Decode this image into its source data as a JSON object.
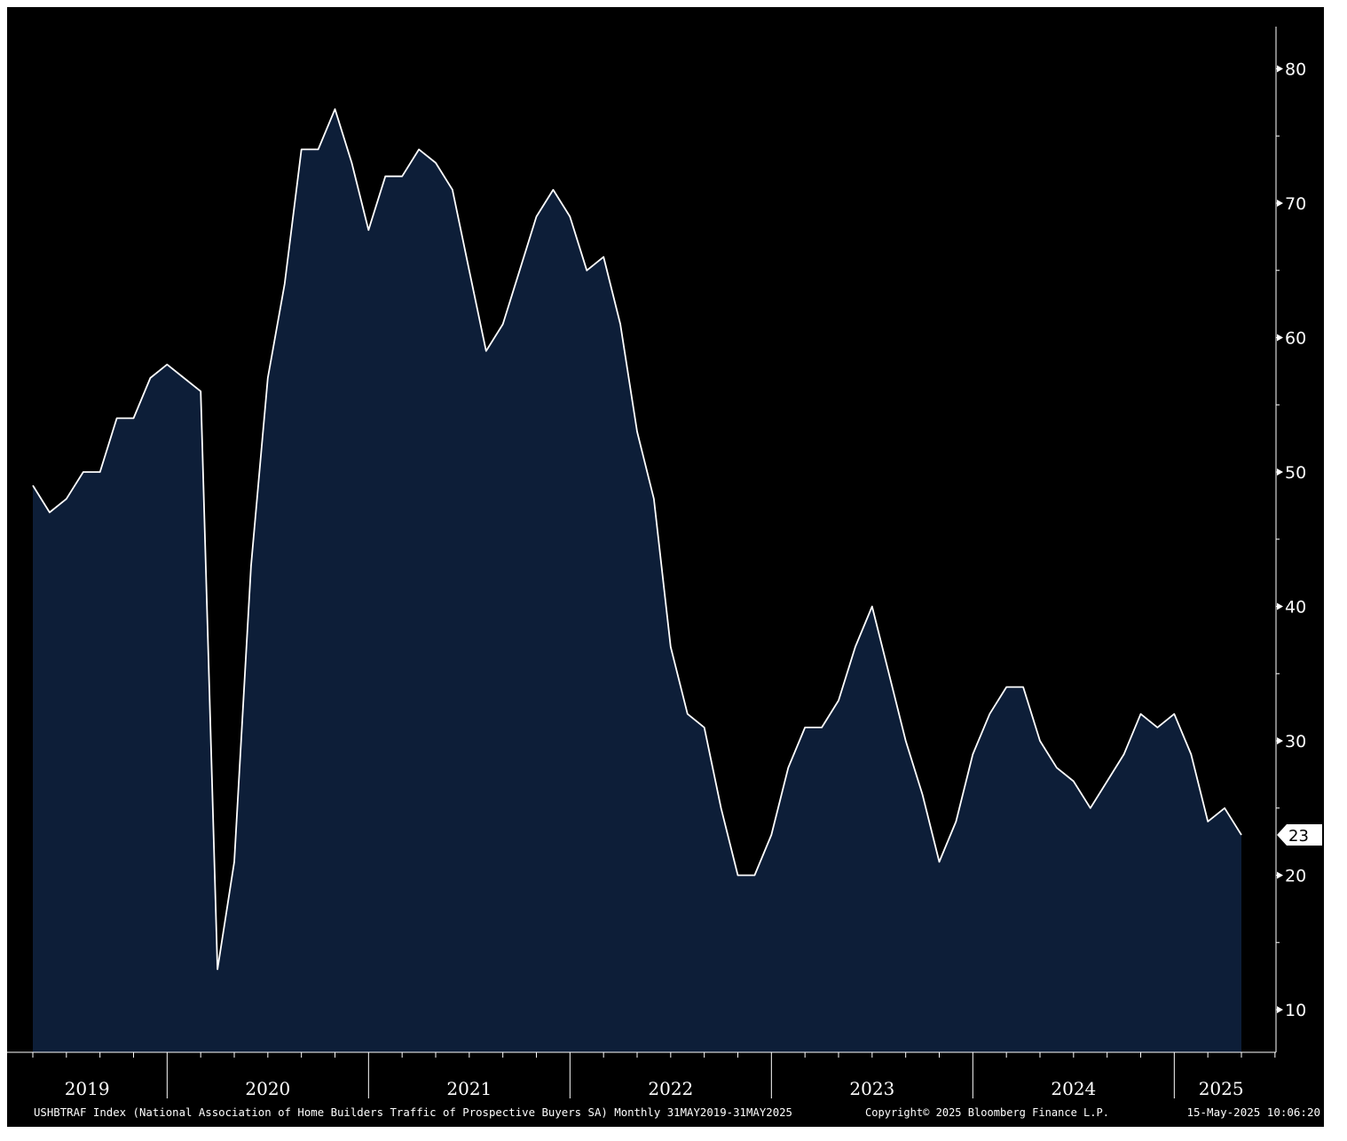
{
  "colors": {
    "background": "#000000",
    "area_fill": "#0d1e38",
    "line": "#ffffff",
    "axis": "#ffffff",
    "last_value_tag": "#ffffff"
  },
  "footer": {
    "series_description": "USHBTRAF Index (National Association of Home Builders Traffic of Prospective Buyers SA)  Monthly 31MAY2019-31MAY2025",
    "copyright": "Copyright© 2025 Bloomberg Finance L.P.",
    "timestamp": "15-May-2025 10:06:20"
  },
  "chart_data": {
    "type": "area",
    "title": "",
    "xlabel": "",
    "ylabel": "",
    "y_axis_position": "right",
    "ylim": [
      7,
      82
    ],
    "yticks": [
      10,
      20,
      30,
      40,
      50,
      60,
      70,
      80
    ],
    "ytick_labels": [
      "10",
      "20",
      "30",
      "40",
      "50",
      "60",
      "70",
      "80"
    ],
    "x_year_labels": [
      "2019",
      "2020",
      "2021",
      "2022",
      "2023",
      "2024",
      "2025"
    ],
    "grid": false,
    "last_value_label": "23",
    "x": [
      "2019-05",
      "2019-06",
      "2019-07",
      "2019-08",
      "2019-09",
      "2019-10",
      "2019-11",
      "2019-12",
      "2020-01",
      "2020-02",
      "2020-03",
      "2020-04",
      "2020-05",
      "2020-06",
      "2020-07",
      "2020-08",
      "2020-09",
      "2020-10",
      "2020-11",
      "2020-12",
      "2021-01",
      "2021-02",
      "2021-03",
      "2021-04",
      "2021-05",
      "2021-06",
      "2021-07",
      "2021-08",
      "2021-09",
      "2021-10",
      "2021-11",
      "2021-12",
      "2022-01",
      "2022-02",
      "2022-03",
      "2022-04",
      "2022-05",
      "2022-06",
      "2022-07",
      "2022-08",
      "2022-09",
      "2022-10",
      "2022-11",
      "2022-12",
      "2023-01",
      "2023-02",
      "2023-03",
      "2023-04",
      "2023-05",
      "2023-06",
      "2023-07",
      "2023-08",
      "2023-09",
      "2023-10",
      "2023-11",
      "2023-12",
      "2024-01",
      "2024-02",
      "2024-03",
      "2024-04",
      "2024-05",
      "2024-06",
      "2024-07",
      "2024-08",
      "2024-09",
      "2024-10",
      "2024-11",
      "2024-12",
      "2025-01",
      "2025-02",
      "2025-03",
      "2025-04",
      "2025-05"
    ],
    "series": [
      {
        "values": [
          49,
          47,
          48,
          50,
          50,
          54,
          54,
          57,
          58,
          57,
          56,
          13,
          21,
          43,
          57,
          64,
          74,
          74,
          77,
          73,
          68,
          72,
          72,
          74,
          73,
          71,
          65,
          59,
          61,
          65,
          69,
          71,
          69,
          65,
          66,
          61,
          53,
          48,
          37,
          32,
          31,
          25,
          20,
          20,
          23,
          28,
          31,
          31,
          33,
          37,
          40,
          35,
          30,
          26,
          21,
          24,
          29,
          32,
          34,
          34,
          30,
          28,
          27,
          25,
          27,
          29,
          32,
          31,
          32,
          29,
          24,
          25,
          23
        ]
      }
    ]
  }
}
